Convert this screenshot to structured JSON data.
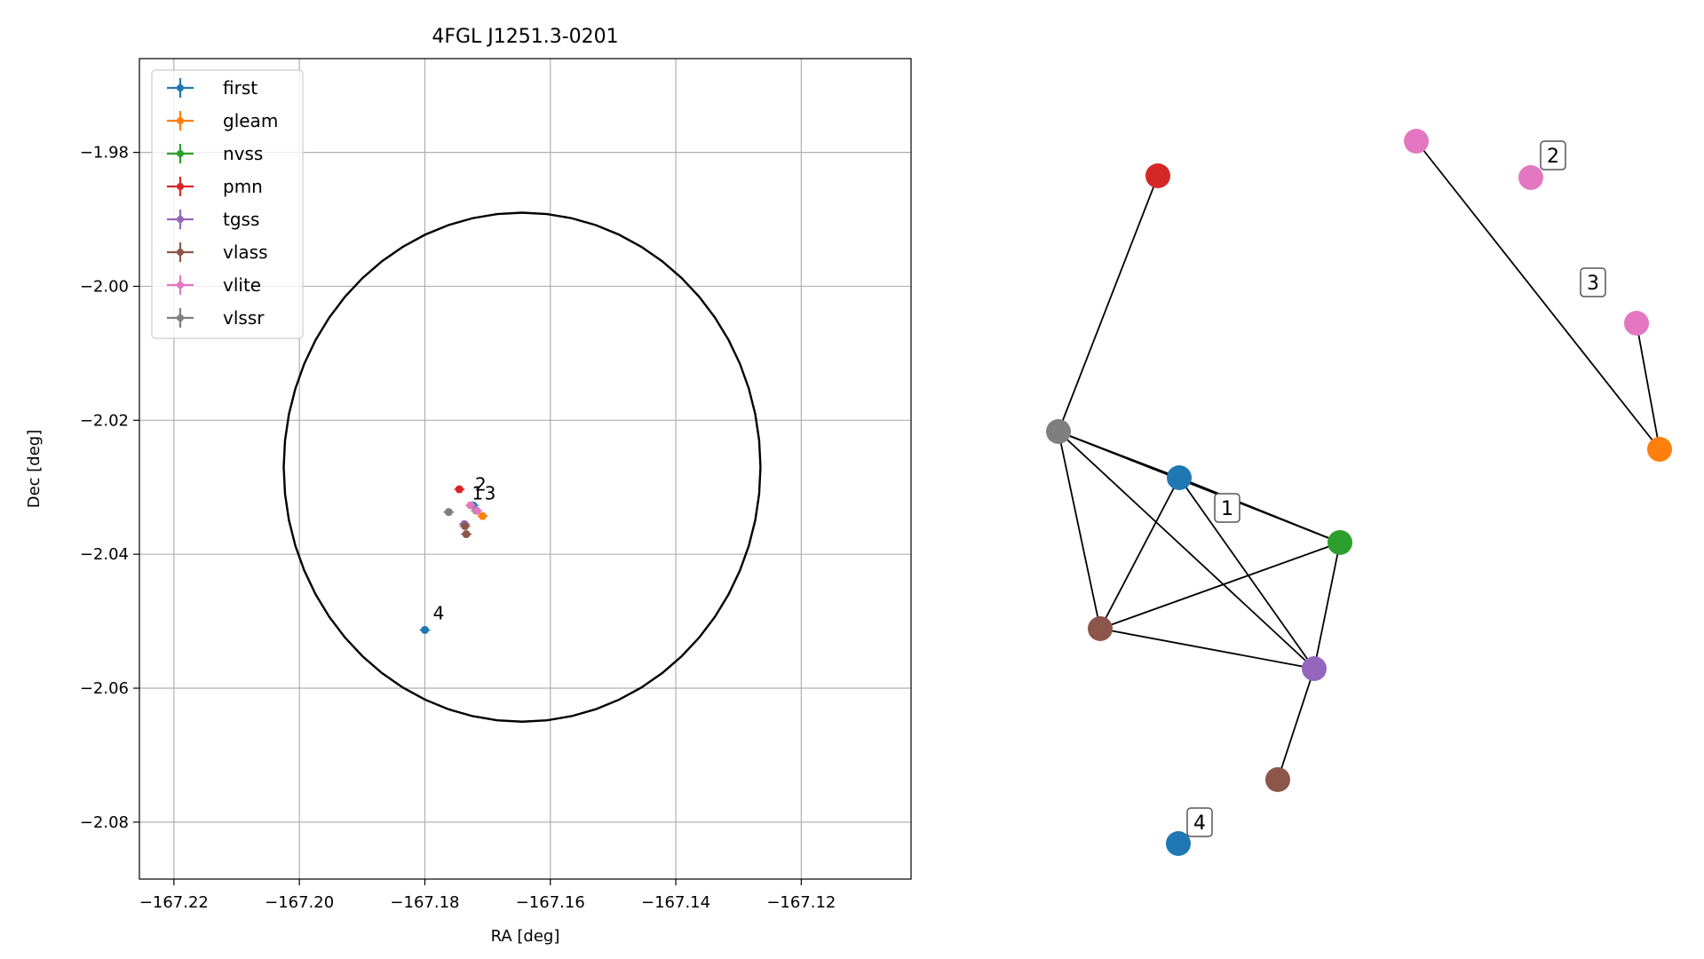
{
  "chart_data": [
    {
      "type": "scatter",
      "title": "4FGL J1251.3-0201",
      "xlabel": "RA [deg]",
      "ylabel": "Dec [deg]",
      "xlim": [
        -167.2255,
        -167.1025
      ],
      "ylim": [
        -2.0885,
        -1.966
      ],
      "xticks": [
        -167.22,
        -167.2,
        -167.18,
        -167.16,
        -167.14,
        -167.12
      ],
      "xtick_labels": [
        "−167.22",
        "−167.20",
        "−167.18",
        "−167.16",
        "−167.14",
        "−167.12"
      ],
      "yticks": [
        -1.98,
        -2.0,
        -2.02,
        -2.04,
        -2.06,
        -2.08
      ],
      "ytick_labels": [
        "−1.98",
        "−2.00",
        "−2.02",
        "−2.04",
        "−2.06",
        "−2.08"
      ],
      "grid": true,
      "legend_position": "top-left",
      "circle": {
        "center": [
          -167.1645,
          -2.027
        ],
        "radius": 0.038
      },
      "series": [
        {
          "name": "first",
          "color": "#1f77b4",
          "points": [
            {
              "x": -167.18,
              "y": -2.0513
            },
            {
              "x": -167.1723,
              "y": -2.0327
            }
          ]
        },
        {
          "name": "gleam",
          "color": "#ff7f0e",
          "points": [
            {
              "x": -167.1708,
              "y": -2.0343
            }
          ]
        },
        {
          "name": "nvss",
          "color": "#2ca02c",
          "points": [
            {
              "x": -167.1718,
              "y": -2.0335
            }
          ]
        },
        {
          "name": "pmn",
          "color": "#d62728",
          "points": [
            {
              "x": -167.1745,
              "y": -2.0303
            }
          ]
        },
        {
          "name": "tgss",
          "color": "#9467bd",
          "points": [
            {
              "x": -167.1737,
              "y": -2.0355
            }
          ]
        },
        {
          "name": "vlass",
          "color": "#8c564b",
          "points": [
            {
              "x": -167.1736,
              "y": -2.0358
            },
            {
              "x": -167.1734,
              "y": -2.037
            }
          ]
        },
        {
          "name": "vlite",
          "color": "#e377c2",
          "points": [
            {
              "x": -167.1727,
              "y": -2.0327
            },
            {
              "x": -167.1717,
              "y": -2.0335
            }
          ]
        },
        {
          "name": "vlssr",
          "color": "#7f7f7f",
          "points": [
            {
              "x": -167.1762,
              "y": -2.0337
            }
          ]
        }
      ],
      "annotations": [
        {
          "text": "1",
          "x": -167.1725,
          "y": -2.0318
        },
        {
          "text": "2",
          "x": -167.172,
          "y": -2.0305
        },
        {
          "text": "3",
          "x": -167.1705,
          "y": -2.0318
        },
        {
          "text": "4",
          "x": -167.1787,
          "y": -2.0497
        }
      ]
    },
    {
      "type": "network",
      "nodes": [
        {
          "id": "first_a",
          "color": "#1f77b4"
        },
        {
          "id": "first_b",
          "color": "#1f77b4"
        },
        {
          "id": "gleam",
          "color": "#ff7f0e"
        },
        {
          "id": "nvss",
          "color": "#2ca02c"
        },
        {
          "id": "pmn",
          "color": "#d62728"
        },
        {
          "id": "tgss",
          "color": "#9467bd"
        },
        {
          "id": "vlass_a",
          "color": "#8c564b"
        },
        {
          "id": "vlass_b",
          "color": "#8c564b"
        },
        {
          "id": "vlite_a",
          "color": "#e377c2"
        },
        {
          "id": "vlite_b",
          "color": "#e377c2"
        },
        {
          "id": "vlite_c",
          "color": "#e377c2"
        },
        {
          "id": "vlssr",
          "color": "#7f7f7f"
        }
      ],
      "edges": [
        [
          "vlssr",
          "pmn"
        ],
        [
          "vlssr",
          "first_a"
        ],
        [
          "vlssr",
          "nvss"
        ],
        [
          "vlssr",
          "tgss"
        ],
        [
          "vlssr",
          "vlass_a"
        ],
        [
          "first_a",
          "nvss"
        ],
        [
          "first_a",
          "tgss"
        ],
        [
          "first_a",
          "vlass_a"
        ],
        [
          "vlass_a",
          "nvss"
        ],
        [
          "vlass_a",
          "tgss"
        ],
        [
          "nvss",
          "tgss"
        ],
        [
          "tgss",
          "vlass_b"
        ],
        [
          "vlite_a",
          "gleam"
        ],
        [
          "vlite_c",
          "gleam"
        ]
      ],
      "labels": [
        {
          "text": "1"
        },
        {
          "text": "2"
        },
        {
          "text": "3"
        },
        {
          "text": "4"
        }
      ]
    }
  ]
}
